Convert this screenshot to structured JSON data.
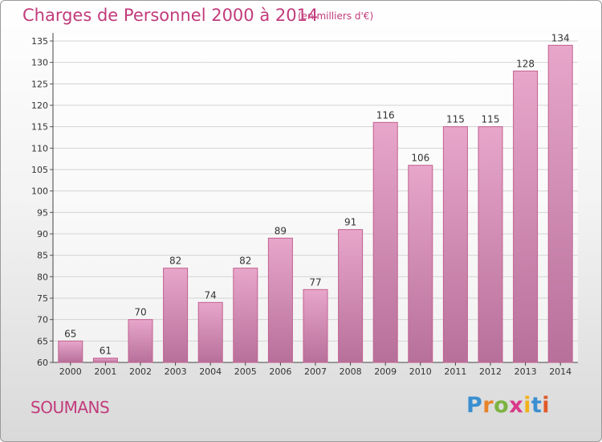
{
  "title": "Charges de Personnel 2000 à 2014",
  "subtitle": "(en milliers d'€)",
  "commune": "SOUMANS",
  "brand": {
    "letters": [
      "P",
      "r",
      "o",
      "x",
      "i",
      "t",
      "i"
    ],
    "colors": [
      "#3a8fd0",
      "#e8832a",
      "#7cb342",
      "#d93a8a",
      "#f2b21c",
      "#3a8fd0",
      "#e05a28"
    ]
  },
  "colors": {
    "bar": "#d77fae",
    "title": "#c23b7b",
    "grid": "#d3d3d3"
  },
  "chart_data": {
    "type": "bar",
    "categories": [
      "2000",
      "2001",
      "2002",
      "2003",
      "2004",
      "2005",
      "2006",
      "2007",
      "2008",
      "2009",
      "2010",
      "2011",
      "2012",
      "2013",
      "2014"
    ],
    "values": [
      65,
      61,
      70,
      82,
      74,
      82,
      89,
      77,
      91,
      116,
      106,
      115,
      115,
      128,
      134
    ],
    "title": "Charges de Personnel 2000 à 2014",
    "subtitle": "(en milliers d'€)",
    "ylim": [
      60,
      135
    ],
    "yticks": [
      60,
      65,
      70,
      75,
      80,
      85,
      90,
      95,
      100,
      105,
      110,
      115,
      120,
      125,
      130,
      135
    ],
    "grid": true,
    "data_labels": true
  }
}
